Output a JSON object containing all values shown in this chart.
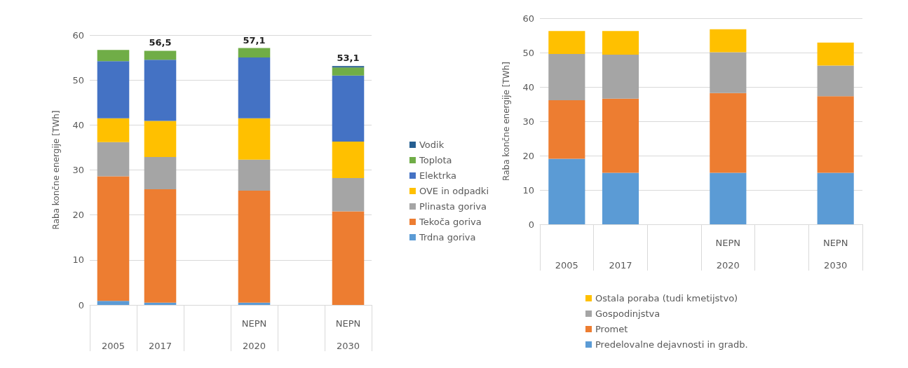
{
  "chart_data": [
    {
      "type": "bar",
      "stacked": true,
      "ylabel": "Raba končne energije [TWh]",
      "categories": [
        "2005",
        "2017",
        null,
        "NEPN\n2020",
        null,
        "NEPN\n2030"
      ],
      "ylim": [
        0,
        60
      ],
      "yticks": [
        0,
        10,
        20,
        30,
        40,
        50,
        60
      ],
      "grid": "y",
      "legend": "right",
      "totals": [
        null,
        "56,5",
        null,
        "57,1",
        null,
        "53,1"
      ],
      "series": [
        {
          "name": "Trdna goriva",
          "color": "#5b9bd5",
          "values": [
            0.9,
            0.5,
            null,
            0.5,
            null,
            0
          ]
        },
        {
          "name": "Tekoča goriva",
          "color": "#ed7d31",
          "values": [
            27.7,
            25.2,
            null,
            24.9,
            null,
            20.8
          ]
        },
        {
          "name": "Plinasta goriva",
          "color": "#a5a5a5",
          "values": [
            7.6,
            7.2,
            null,
            6.9,
            null,
            7.4
          ]
        },
        {
          "name": "OVE in odpadki",
          "color": "#ffc000",
          "values": [
            5.3,
            8.0,
            null,
            9.2,
            null,
            8.1
          ]
        },
        {
          "name": "Elektrka",
          "color": "#4472c4",
          "values": [
            12.7,
            13.6,
            null,
            13.5,
            null,
            14.7
          ]
        },
        {
          "name": "Toplota",
          "color": "#70ad47",
          "values": [
            2.5,
            2.0,
            null,
            2.1,
            null,
            1.8
          ]
        },
        {
          "name": "Vodik",
          "color": "#255e91",
          "values": [
            0,
            0,
            null,
            0,
            null,
            0.3
          ]
        }
      ]
    },
    {
      "type": "bar",
      "stacked": true,
      "ylabel": "Raba končne energije [TWh]",
      "categories": [
        "2005",
        "2017",
        null,
        "NEPN\n2020",
        null,
        "NEPN\n2030"
      ],
      "ylim": [
        0,
        60
      ],
      "yticks": [
        0,
        10,
        20,
        30,
        40,
        50,
        60
      ],
      "grid": "y",
      "legend": "bottom",
      "series": [
        {
          "name": "Predelovalne dejavnosti in gradb.",
          "color": "#5b9bd5",
          "values": [
            19.1,
            15.0,
            null,
            15.0,
            null,
            15.0
          ]
        },
        {
          "name": "Promet",
          "color": "#ed7d31",
          "values": [
            17.0,
            21.6,
            null,
            23.2,
            null,
            22.3
          ]
        },
        {
          "name": "Gospodinjstva",
          "color": "#a5a5a5",
          "values": [
            13.5,
            12.8,
            null,
            11.9,
            null,
            8.9
          ]
        },
        {
          "name": "Ostala poraba (tudi kmetijstvo)",
          "color": "#ffc000",
          "values": [
            6.7,
            6.9,
            null,
            6.7,
            null,
            6.7
          ]
        }
      ]
    }
  ]
}
